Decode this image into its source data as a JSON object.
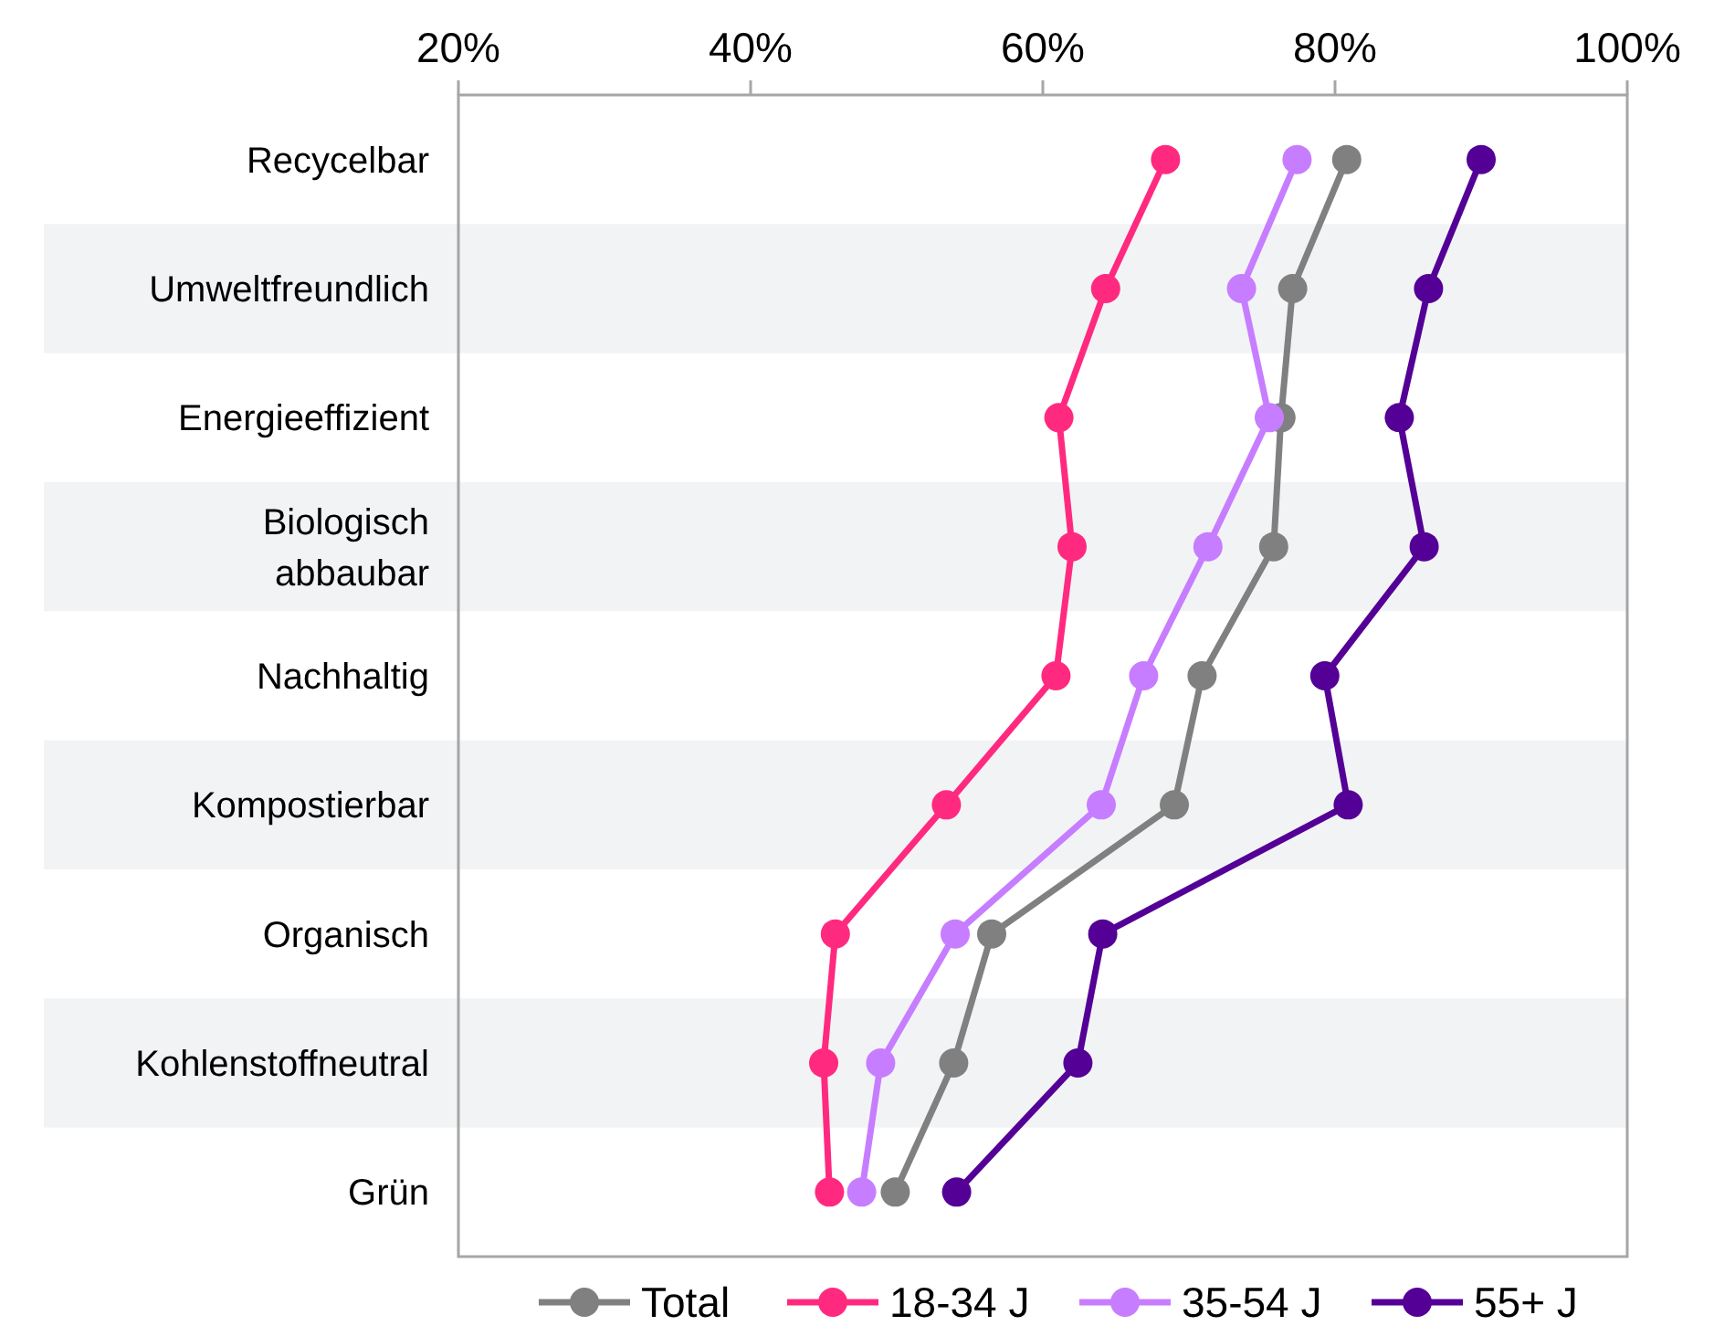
{
  "chart_data": {
    "type": "line",
    "orientation": "horizontal",
    "categories": [
      "Recycelbar",
      "Umweltfreundlich",
      "Energieeffizient",
      "Biologisch\nabbaubar",
      "Nachhaltig",
      "Kompostierbar",
      "Organisch",
      "Kohlenstoffneutral",
      "Grün"
    ],
    "xlim": [
      20,
      100
    ],
    "xticks": [
      {
        "value": 20,
        "label": "20%"
      },
      {
        "value": 40,
        "label": "40%"
      },
      {
        "value": 60,
        "label": "60%"
      },
      {
        "value": 80,
        "label": "80%"
      },
      {
        "value": 100,
        "label": "100%"
      }
    ],
    "marker": "circle",
    "line_style": "solid",
    "legend": "bottom",
    "grid": false,
    "series": [
      {
        "name": "Total",
        "color": "#808080",
        "values": [
          80.8,
          77.1,
          76.3,
          75.8,
          70.9,
          69,
          56.5,
          53.9,
          49.9
        ]
      },
      {
        "name": "18-34 J",
        "color": "#ff2a7f",
        "values": [
          68.4,
          64.3,
          61.1,
          62,
          60.9,
          53.4,
          45.8,
          45,
          45.4
        ]
      },
      {
        "name": "35-54 J",
        "color": "#c77dff",
        "values": [
          77.4,
          73.6,
          75.5,
          71.3,
          66.9,
          64,
          54,
          48.9,
          47.6
        ]
      },
      {
        "name": "55+ J",
        "color": "#540096",
        "values": [
          90,
          86.4,
          84.4,
          86.1,
          79.3,
          80.9,
          64.1,
          62.4,
          54.1
        ]
      }
    ]
  }
}
